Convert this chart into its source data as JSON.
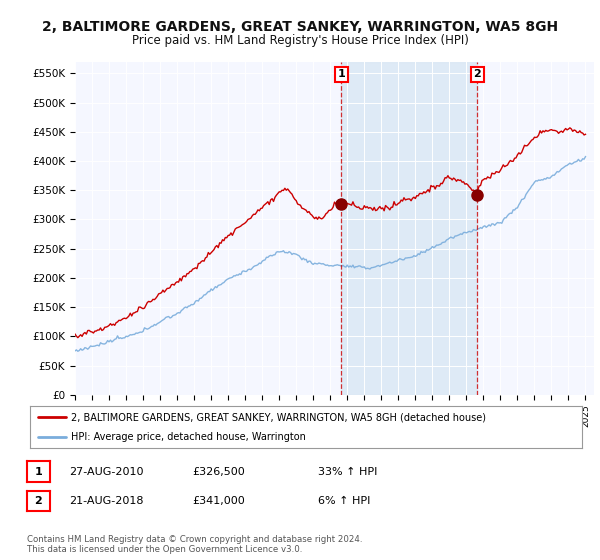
{
  "title": "2, BALTIMORE GARDENS, GREAT SANKEY, WARRINGTON, WA5 8GH",
  "subtitle": "Price paid vs. HM Land Registry's House Price Index (HPI)",
  "title_fontsize": 10,
  "subtitle_fontsize": 8.5,
  "ylabel_ticks": [
    "£0",
    "£50K",
    "£100K",
    "£150K",
    "£200K",
    "£250K",
    "£300K",
    "£350K",
    "£400K",
    "£450K",
    "£500K",
    "£550K"
  ],
  "ytick_values": [
    0,
    50000,
    100000,
    150000,
    200000,
    250000,
    300000,
    350000,
    400000,
    450000,
    500000,
    550000
  ],
  "ylim": [
    0,
    570000
  ],
  "background_color": "#ffffff",
  "plot_bg_color": "#f5f7ff",
  "red_line_color": "#cc0000",
  "blue_line_color": "#7aaddc",
  "shade_color": "#dce9f5",
  "sale1_price": 326500,
  "sale1_x": 2010.65,
  "sale2_price": 341000,
  "sale2_x": 2018.65,
  "vline1_x": 2010.65,
  "vline2_x": 2018.65,
  "legend_red_label": "2, BALTIMORE GARDENS, GREAT SANKEY, WARRINGTON, WA5 8GH (detached house)",
  "legend_blue_label": "HPI: Average price, detached house, Warrington",
  "table_row1": [
    "1",
    "27-AUG-2010",
    "£326,500",
    "33% ↑ HPI"
  ],
  "table_row2": [
    "2",
    "21-AUG-2018",
    "£341,000",
    "6% ↑ HPI"
  ],
  "footer": "Contains HM Land Registry data © Crown copyright and database right 2024.\nThis data is licensed under the Open Government Licence v3.0.",
  "xmin": 1995,
  "xmax": 2025.5
}
